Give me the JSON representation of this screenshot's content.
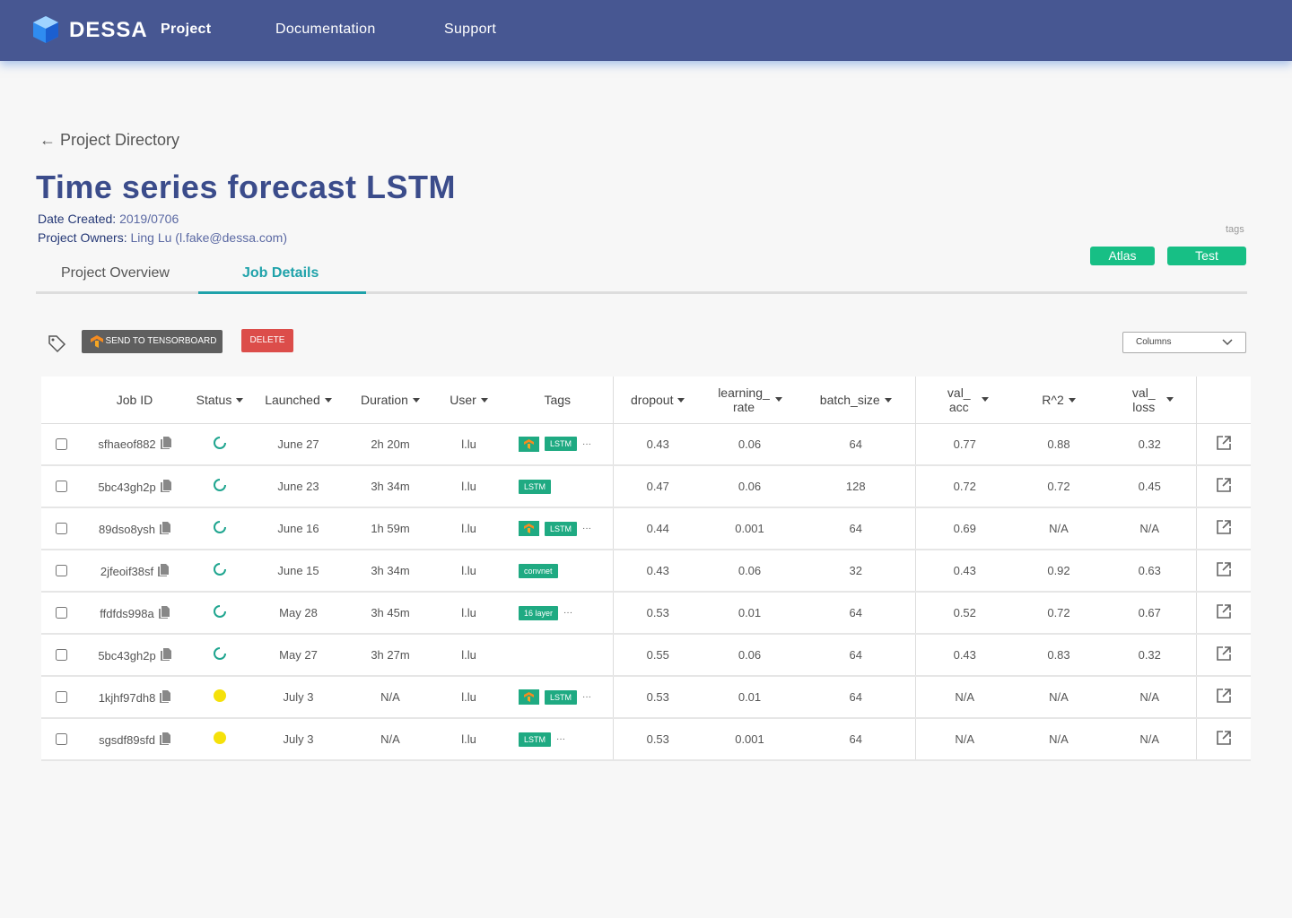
{
  "nav": {
    "brand": "DESSA",
    "links": [
      "Project",
      "Documentation",
      "Support"
    ]
  },
  "back_link": "Project Directory",
  "title": "Time series forecast LSTM",
  "meta": {
    "date_label": "Date Created:",
    "date": "2019/0706",
    "owners_label": "Project Owners:",
    "owners": "Ling Lu (l.fake@dessa.com)"
  },
  "tags_label": "tags",
  "project_tags": [
    "Atlas",
    "Test"
  ],
  "tabs": [
    "Project Overview",
    "Job Details"
  ],
  "actions": {
    "tensorboard": "SEND TO TENSORBOARD",
    "delete": "DELETE",
    "columns": "Columns"
  },
  "table": {
    "headers": [
      "Job ID",
      "Status",
      "Launched",
      "Duration",
      "User",
      "Tags",
      "dropout",
      "learning_ rate",
      "batch_size",
      "val_ acc",
      "R^2",
      "val_ loss"
    ],
    "rows": [
      {
        "job_id": "sfhaeof882",
        "status": "running",
        "launched": "June 27",
        "duration": "2h 20m",
        "user": "l.lu",
        "tensorboard": true,
        "tags": [
          "LSTM"
        ],
        "more": "···",
        "dropout": 0.43,
        "learning_rate": 0.06,
        "batch_size": 64,
        "val_acc": 0.77,
        "r2": 0.88,
        "val_loss": 0.32
      },
      {
        "job_id": "5bc43gh2p",
        "status": "running",
        "launched": "June 23",
        "duration": "3h 34m",
        "user": "l.lu",
        "tensorboard": false,
        "tags": [
          "LSTM"
        ],
        "dropout": 0.47,
        "learning_rate": 0.06,
        "batch_size": 128,
        "val_acc": 0.72,
        "r2": 0.72,
        "val_loss": 0.45
      },
      {
        "job_id": "89dso8ysh",
        "status": "running",
        "launched": "June 16",
        "duration": "1h 59m",
        "user": "l.lu",
        "tensorboard": true,
        "tags": [
          "LSTM"
        ],
        "more": "···",
        "dropout": 0.44,
        "learning_rate": 0.001,
        "batch_size": 64,
        "val_acc": 0.69,
        "r2": "N/A",
        "val_loss": "N/A"
      },
      {
        "job_id": "2jfeoif38sf",
        "status": "running",
        "launched": "June 15",
        "duration": "3h 34m",
        "user": "l.lu",
        "tensorboard": false,
        "tags": [
          "convnet"
        ],
        "dropout": 0.43,
        "learning_rate": 0.06,
        "batch_size": 32,
        "val_acc": 0.43,
        "r2": 0.92,
        "val_loss": 0.63
      },
      {
        "job_id": "ffdfds998a",
        "status": "running",
        "launched": "May 28",
        "duration": "3h 45m",
        "user": "l.lu",
        "tensorboard": false,
        "tags": [
          "16 layer"
        ],
        "more": "···",
        "dropout": 0.53,
        "learning_rate": 0.01,
        "batch_size": 64,
        "val_acc": 0.52,
        "r2": 0.72,
        "val_loss": 0.67
      },
      {
        "job_id": "5bc43gh2p",
        "status": "running",
        "launched": "May 27",
        "duration": "3h 27m",
        "user": "l.lu",
        "tensorboard": false,
        "tags": [],
        "dropout": 0.55,
        "learning_rate": 0.06,
        "batch_size": 64,
        "val_acc": 0.43,
        "r2": 0.83,
        "val_loss": 0.32
      },
      {
        "job_id": "1kjhf97dh8",
        "status": "queued",
        "launched": "July 3",
        "duration": "N/A",
        "user": "l.lu",
        "tensorboard": true,
        "tags": [
          "LSTM"
        ],
        "more": "···",
        "dropout": 0.53,
        "learning_rate": 0.01,
        "batch_size": 64,
        "val_acc": "N/A",
        "r2": "N/A",
        "val_loss": "N/A"
      },
      {
        "job_id": "sgsdf89sfd",
        "status": "queued",
        "launched": "July 3",
        "duration": "N/A",
        "user": "l.lu",
        "tensorboard": false,
        "tags": [
          "LSTM"
        ],
        "more": "···",
        "dropout": 0.53,
        "learning_rate": 0.001,
        "batch_size": 64,
        "val_acc": "N/A",
        "r2": "N/A",
        "val_loss": "N/A"
      }
    ]
  }
}
